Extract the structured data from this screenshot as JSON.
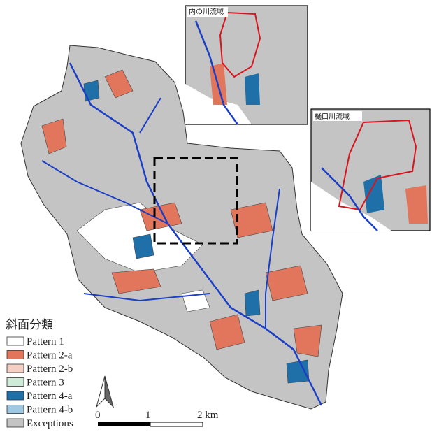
{
  "inset_labels": [
    "内の川流域",
    "樋口川流域"
  ],
  "legend": {
    "title": "斜面分類",
    "items": [
      {
        "label": "Pattern 1",
        "color": "#ffffff"
      },
      {
        "label": "Pattern 2-a",
        "color": "#e2765c"
      },
      {
        "label": "Pattern 2-b",
        "color": "#f6cfc4"
      },
      {
        "label": "Pattern 3",
        "color": "#cdebd6"
      },
      {
        "label": "Pattern 4-a",
        "color": "#1f6fa8"
      },
      {
        "label": "Pattern 4-b",
        "color": "#9ec8e4"
      },
      {
        "label": "Exceptions",
        "color": "#c4c4c4"
      }
    ]
  },
  "scale_bar": {
    "labels": [
      "0",
      "1",
      "2 km"
    ]
  }
}
